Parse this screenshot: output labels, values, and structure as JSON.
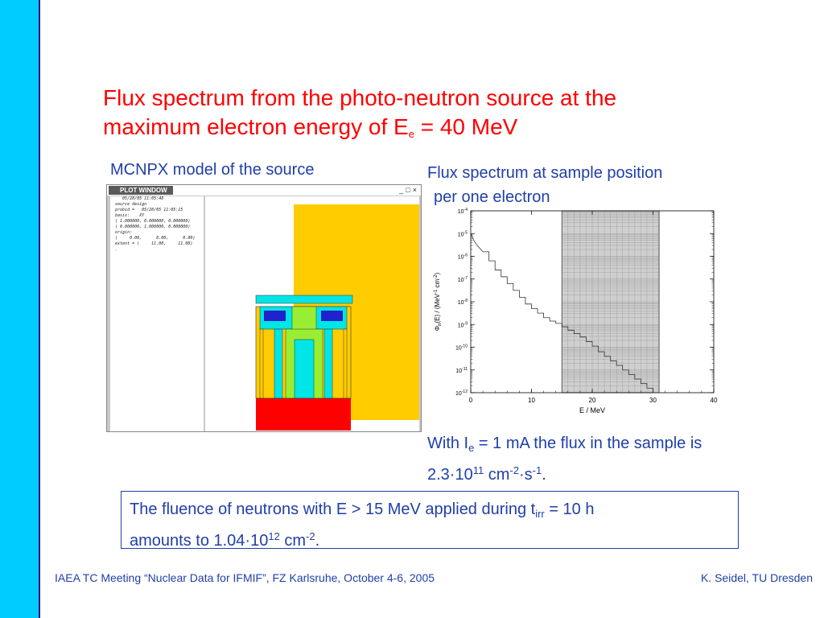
{
  "title": {
    "line1": "Flux spectrum from the photo-neutron source at the",
    "line2_pre": "maximum electron energy of E",
    "line2_sub": "e",
    "line2_post": " = 40 MeV"
  },
  "left_caption": "MCNPX model of the source",
  "right_caption": {
    "line1": "Flux spectrum at sample position",
    "line2": "per one electron"
  },
  "plot_window": {
    "title": "PLOT WINDOW",
    "controls": "_□×",
    "text_lines": [
      "     05/28/05 11:05:48",
      "  source design",
      "",
      "  probid =   05/28/05 11:05:15",
      "  basis:    XY",
      "  ( 1.000000, 0.000000, 0.000000)",
      "  ( 0.000000, 1.000000, 0.000000)",
      "  origin:",
      "  (     0.00,      0.00,      0.00)",
      "  extent = (     11.00,     11.00)",
      "  ."
    ],
    "colors": {
      "background": "#ffcc00",
      "cyan": "#00e5e5",
      "green": "#99ee33",
      "blue": "#2222cc",
      "red": "#ff0000"
    }
  },
  "chart_data": {
    "type": "line",
    "xlabel": "E / MeV",
    "ylabel": "Φ_n(E) / (MeV⁻¹ cm⁻²)",
    "xlim": [
      0,
      40
    ],
    "ylim_exp": [
      -12,
      -4
    ],
    "x_ticks": [
      0,
      10,
      20,
      30,
      40
    ],
    "y_tick_labels": [
      "10-4",
      "10-5",
      "10-6",
      "10-7",
      "10-8",
      "10-9",
      "10-10",
      "10-11",
      "10-12"
    ],
    "highlight_range": [
      15,
      31
    ],
    "series": [
      {
        "x": [
          0,
          0.2,
          0.5,
          1,
          2,
          3,
          4,
          5,
          6,
          7,
          8,
          9,
          10,
          11,
          12,
          13,
          14,
          15,
          16,
          17,
          18,
          19,
          20,
          21,
          22,
          23,
          24,
          25,
          26,
          27,
          28,
          29,
          30,
          31
        ],
        "y_exp": [
          -5.0,
          -5.1,
          -5.3,
          -5.5,
          -5.8,
          -6.2,
          -6.6,
          -6.9,
          -7.2,
          -7.5,
          -7.8,
          -8.1,
          -8.3,
          -8.5,
          -8.7,
          -8.85,
          -8.95,
          -9.1,
          -9.25,
          -9.4,
          -9.55,
          -9.75,
          -9.95,
          -10.2,
          -10.4,
          -10.6,
          -10.8,
          -11.0,
          -11.2,
          -11.4,
          -11.6,
          -11.8,
          -12.0,
          -12.0
        ]
      }
    ]
  },
  "note": {
    "pre": "With I",
    "sub": "e",
    "mid": " = 1 mA the flux in the sample is",
    "line2_pre": "2.3·10",
    "sup1": "11",
    "line2_mid": " cm",
    "sup2": "-2",
    "line2_mid2": "·s",
    "sup3": "-1",
    "line2_post": "."
  },
  "box": {
    "pre": "The fluence of neutrons with E > 15 MeV applied during t",
    "sub": "irr",
    "post": " = 10 h",
    "line2_pre": "amounts to 1.04·10",
    "sup1": "12",
    "line2_mid": " cm",
    "sup2": "-2",
    "line2_post": "."
  },
  "footer": {
    "left": "IAEA TC Meeting “Nuclear Data for IFMIF”, FZ Karlsruhe, October 4-6, 2005",
    "right": "K. Seidel, TU Dresden"
  }
}
